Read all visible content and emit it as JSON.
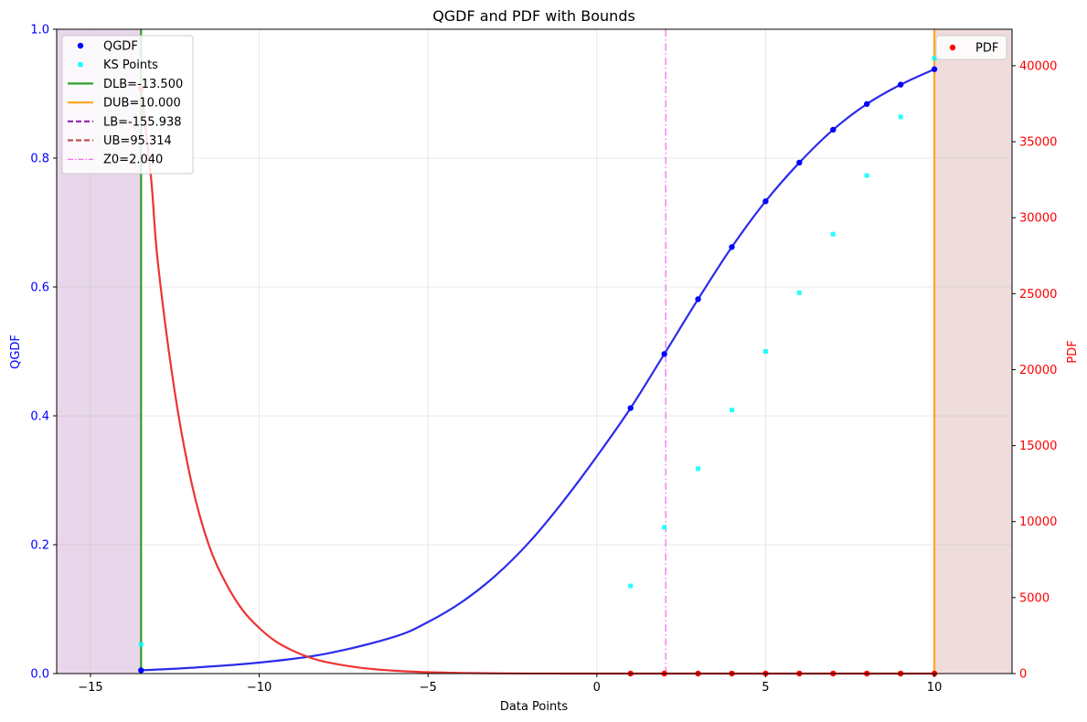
{
  "chart_data": {
    "type": "line",
    "title": "QGDF and PDF with Bounds",
    "xlabel": "Data Points",
    "ylabel_left": "QGDF",
    "ylabel_right": "PDF",
    "xlim": [
      -16.0,
      12.3
    ],
    "ylim_left": [
      0,
      1.0
    ],
    "ylim_right": [
      0,
      42400
    ],
    "x_ticks": [
      -15,
      -10,
      -5,
      0,
      5,
      10
    ],
    "y_ticks_left": [
      0.0,
      0.2,
      0.4,
      0.6,
      0.8,
      1.0
    ],
    "y_ticks_right": [
      0,
      5000,
      10000,
      15000,
      20000,
      25000,
      30000,
      35000,
      40000
    ],
    "grid": true,
    "colors": {
      "qgdf": "#0000ff",
      "qgdf_line": "#2b2bed",
      "ks": "#00ffff",
      "pdf": "#ff0000",
      "pdf_line": "#ee3333",
      "dlb": "#2ca02c",
      "dub": "#ffa726",
      "lb": "#8e24aa",
      "ub": "#c0504d",
      "z0": "#ee44ee",
      "shade_left": "#e8d6ea",
      "shade_right": "#efdcdc",
      "left_axis_text": "#0000ff",
      "right_axis_text": "#ff0000"
    },
    "qgdf_points": {
      "name": "QGDF",
      "x": [
        -13.5,
        1,
        2,
        3,
        4,
        5,
        6,
        7,
        8,
        9,
        10
      ],
      "y": [
        0.005,
        0.412,
        0.496,
        0.581,
        0.662,
        0.733,
        0.793,
        0.844,
        0.884,
        0.914,
        0.938
      ]
    },
    "ks_points": {
      "name": "KS Points",
      "x": [
        -13.5,
        1,
        2,
        3,
        4,
        5,
        6,
        7,
        8,
        9,
        10
      ],
      "y": [
        0.045,
        0.136,
        0.227,
        0.318,
        0.409,
        0.5,
        0.591,
        0.682,
        0.773,
        0.864,
        0.955
      ]
    },
    "pdf_points": {
      "name": "PDF",
      "x": [
        -13.5,
        1,
        2,
        3,
        4,
        5,
        6,
        7,
        8,
        9,
        10
      ],
      "y": [
        38500,
        0,
        0,
        0,
        0,
        0,
        0,
        0,
        0,
        0,
        0
      ]
    },
    "qgdf_curve": {
      "x": [
        -13.5,
        -12,
        -10,
        -8,
        -6,
        -5,
        -4,
        -3,
        -2,
        -1,
        0,
        1,
        2,
        3,
        4,
        5,
        6,
        7,
        8,
        9,
        10
      ],
      "y": [
        0.005,
        0.009,
        0.017,
        0.031,
        0.057,
        0.08,
        0.111,
        0.152,
        0.204,
        0.267,
        0.337,
        0.412,
        0.496,
        0.581,
        0.662,
        0.733,
        0.793,
        0.844,
        0.884,
        0.914,
        0.938
      ]
    },
    "pdf_curve": {
      "x": [
        -13.5,
        -13.2,
        -13.0,
        -12.5,
        -12.0,
        -11.5,
        -11.0,
        -10.5,
        -10.0,
        -9.5,
        -9.0,
        -8.5,
        -8.0,
        -7.0,
        -6.0,
        -5.0,
        -4.0,
        -3.0,
        -2.0,
        0.0,
        2.0,
        5.0,
        10.0
      ],
      "y": [
        38500,
        32500,
        27000,
        18500,
        12500,
        8500,
        6000,
        4200,
        3000,
        2100,
        1500,
        1050,
        750,
        380,
        190,
        90,
        40,
        15,
        5,
        0,
        0,
        0,
        0
      ]
    },
    "bounds": {
      "dlb": {
        "label": "DLB=-13.500",
        "x": -13.5
      },
      "dub": {
        "label": "DUB=10.000",
        "x": 10.0
      },
      "lb": {
        "label": "LB=-155.938",
        "x": -155.938
      },
      "ub": {
        "label": "UB=95.314",
        "x": 95.314
      },
      "z0": {
        "label": "Z0=2.040",
        "x": 2.04
      }
    },
    "legend_left": {
      "placement": "upper-left",
      "entries": [
        "QGDF",
        "KS Points",
        "DLB=-13.500",
        "DUB=10.000",
        "LB=-155.938",
        "UB=95.314",
        "Z0=2.040"
      ]
    },
    "legend_right": {
      "placement": "upper-right",
      "entries": [
        "PDF"
      ]
    }
  }
}
